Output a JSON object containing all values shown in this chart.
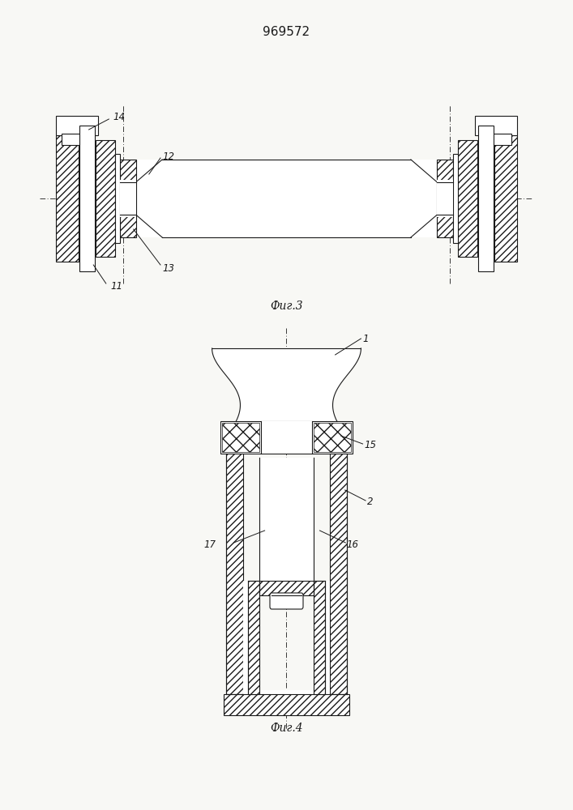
{
  "title": "969572",
  "fig3_caption": "Фиг.3",
  "fig4_caption": "Фиг.4",
  "bg_color": "#f8f8f5",
  "line_color": "#1a1a1a"
}
